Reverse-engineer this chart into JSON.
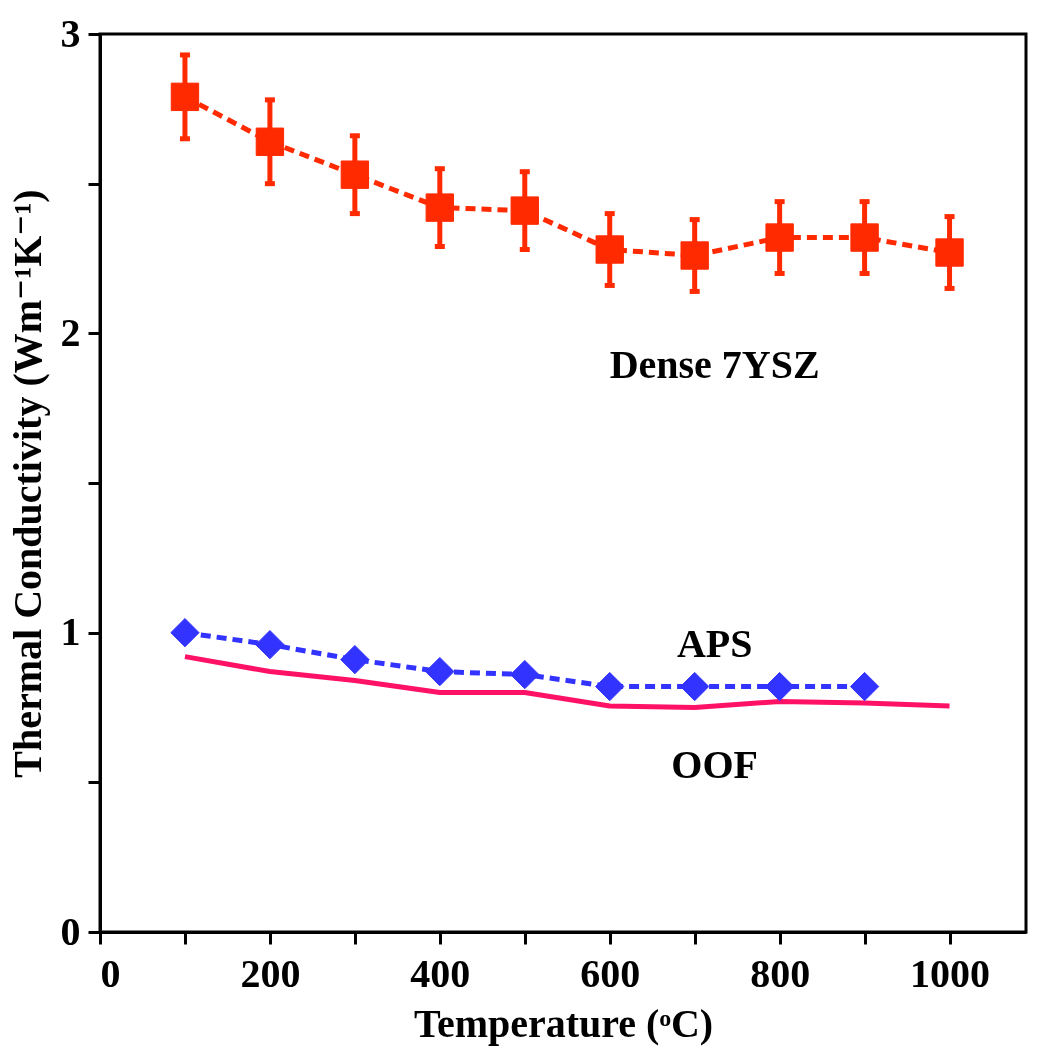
{
  "chart_data": {
    "type": "line",
    "xlabel": "Temperature (ᵒC)",
    "ylabel": "Thermal Conductivity (Wm⁻¹K⁻¹)",
    "xlim": [
      0,
      1090
    ],
    "ylim": [
      0,
      3
    ],
    "xticks": [
      0,
      {
        "value": 100,
        "label": null
      },
      200,
      {
        "value": 300,
        "label": null
      },
      400,
      {
        "value": 500,
        "label": null
      },
      600,
      {
        "value": 700,
        "label": null
      },
      800,
      {
        "value": 900,
        "label": null
      },
      1000
    ],
    "yticks": [
      0,
      {
        "value": 0.5,
        "label": null
      },
      1,
      {
        "value": 1.5,
        "label": null
      },
      2,
      {
        "value": 2.5,
        "label": null
      },
      3
    ],
    "grid": false,
    "legend": false,
    "series": [
      {
        "name": "Dense 7YSZ",
        "color": "#ff2a00",
        "marker": "square",
        "line_style": "dashed",
        "x": [
          100,
          200,
          300,
          400,
          500,
          600,
          700,
          800,
          900,
          1000
        ],
        "values": [
          2.79,
          2.64,
          2.53,
          2.42,
          2.41,
          2.28,
          2.26,
          2.32,
          2.32,
          2.27
        ],
        "errors": [
          0.14,
          0.14,
          0.13,
          0.13,
          0.13,
          0.12,
          0.12,
          0.12,
          0.12,
          0.12
        ]
      },
      {
        "name": "APS",
        "color": "#3333ff",
        "marker": "diamond",
        "line_style": "dashed",
        "x": [
          100,
          200,
          300,
          400,
          500,
          600,
          700,
          800,
          900
        ],
        "values": [
          1.0,
          0.96,
          0.91,
          0.87,
          0.86,
          0.82,
          0.82,
          0.82,
          0.82
        ]
      },
      {
        "name": "OOF",
        "color": "#ff1166",
        "marker": "none",
        "line_style": "solid",
        "x": [
          100,
          200,
          300,
          400,
          500,
          600,
          700,
          800,
          900,
          1000
        ],
        "values": [
          0.92,
          0.87,
          0.84,
          0.8,
          0.8,
          0.755,
          0.75,
          0.77,
          0.765,
          0.755
        ]
      }
    ]
  }
}
